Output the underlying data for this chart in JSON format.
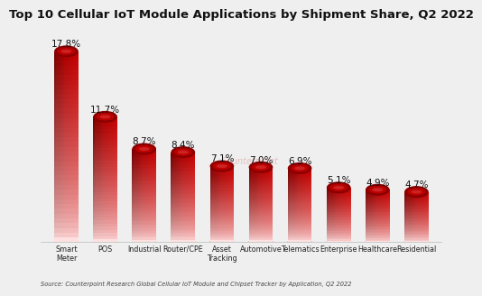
{
  "title": "Top 10 Cellular IoT Module Applications by Shipment Share, Q2 2022",
  "categories": [
    "Smart\nMeter",
    "POS",
    "Industrial",
    "Router/CPE",
    "Asset\nTracking",
    "Automotive",
    "Telematics",
    "Enterprise",
    "Healthcare",
    "Residential"
  ],
  "values": [
    17.8,
    11.7,
    8.7,
    8.4,
    7.1,
    7.0,
    6.9,
    5.1,
    4.9,
    4.7
  ],
  "labels": [
    "17.8%",
    "11.7%",
    "8.7%",
    "8.4%",
    "7.1%",
    "7.0%",
    "6.9%",
    "5.1%",
    "4.9%",
    "4.7%"
  ],
  "background_color": "#f0efef",
  "title_fontsize": 9.5,
  "label_fontsize": 7.5,
  "source_text": "Source: Counterpoint Research Global Cellular IoT Module and Chipset Tracker by Application, Q2 2022",
  "watermark": "Counterpoint",
  "ylim": [
    0,
    20
  ],
  "bar_width": 0.62
}
